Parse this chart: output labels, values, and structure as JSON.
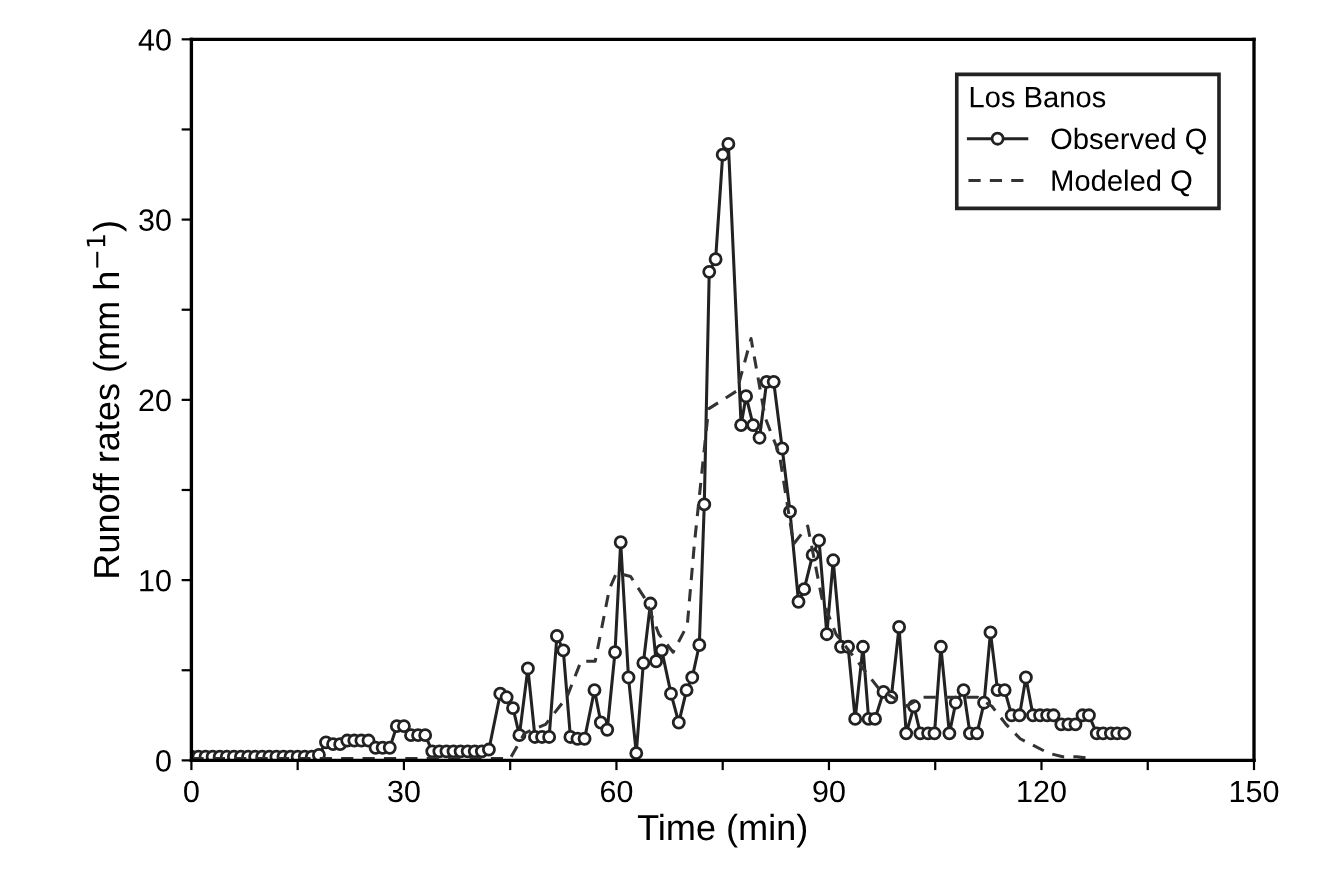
{
  "chart_data": {
    "type": "line",
    "xlabel": "Time (min)",
    "ylabel": "Runoff rates (mm h$^{−1}$)",
    "legend_title": "Los Banos",
    "legend": "top right",
    "grid": false,
    "xlim": [
      0,
      150
    ],
    "ylim": [
      0,
      40
    ],
    "xticks": [
      0,
      {
        "value": 15,
        "label": null
      },
      30,
      {
        "value": 45,
        "label": null
      },
      60,
      {
        "value": 75,
        "label": null
      },
      90,
      {
        "value": 105,
        "label": null
      },
      120,
      {
        "value": 135,
        "label": null
      },
      150
    ],
    "yticks": [
      0,
      {
        "value": 5,
        "label": null
      },
      10,
      {
        "value": 15,
        "label": null
      },
      20,
      {
        "value": 25,
        "label": null
      },
      30,
      {
        "value": 35,
        "label": null
      },
      40
    ],
    "series": [
      {
        "name": "Observed Q",
        "color": "#222222",
        "marker": "circle",
        "line_style": "solid",
        "x": [
          0,
          1,
          2,
          3,
          4,
          5,
          6,
          7,
          8,
          9,
          10,
          11,
          12,
          13,
          14,
          15,
          16,
          17,
          18,
          19,
          20,
          21,
          22,
          23,
          24,
          25,
          26,
          27,
          28,
          29,
          30,
          31,
          32,
          33,
          34,
          35,
          36,
          37,
          38,
          39,
          40,
          41,
          42,
          43.6,
          44.5,
          45.4,
          46.3,
          47.5,
          48.5,
          49.5,
          50.5,
          51.6,
          52.5,
          53.5,
          54.5,
          55.5,
          56.9,
          57.8,
          58.7,
          59.8,
          60.6,
          61.7,
          62.8,
          63.8,
          64.8,
          65.6,
          66.4,
          67.7,
          68.8,
          69.9,
          70.7,
          71.7,
          72.4,
          73.1,
          74,
          75,
          75.8,
          77.6,
          78.3,
          79.3,
          80.2,
          81.2,
          82.2,
          83.4,
          84.5,
          85.7,
          86.5,
          87.7,
          88.6,
          89.7,
          90.6,
          91.7,
          92.7,
          93.7,
          94.8,
          95.6,
          96.5,
          97.7,
          98.8,
          99.9,
          100.9,
          102,
          102.9,
          104,
          104.9,
          105.8,
          107,
          107.9,
          109,
          109.9,
          110.9,
          111.9,
          112.8,
          113.8,
          114.8,
          115.8,
          116.9,
          117.8,
          118.8,
          119.8,
          120.8,
          121.7,
          122.8,
          123.8,
          124.8,
          125.8,
          126.7,
          127.8,
          128.7,
          129.8,
          130.7,
          131.7
        ],
        "values": [
          0.2,
          0.2,
          0.2,
          0.2,
          0.2,
          0.2,
          0.2,
          0.2,
          0.2,
          0.2,
          0.2,
          0.2,
          0.2,
          0.2,
          0.2,
          0.2,
          0.2,
          0.2,
          0.3,
          1.0,
          0.9,
          0.9,
          1.1,
          1.1,
          1.1,
          1.1,
          0.7,
          0.7,
          0.7,
          1.9,
          1.9,
          1.4,
          1.4,
          1.4,
          0.5,
          0.5,
          0.5,
          0.5,
          0.5,
          0.5,
          0.5,
          0.5,
          0.6,
          3.7,
          3.5,
          2.9,
          1.4,
          5.1,
          1.3,
          1.3,
          1.3,
          6.9,
          6.1,
          1.3,
          1.2,
          1.2,
          3.9,
          2.1,
          1.7,
          6.0,
          12.1,
          4.6,
          0.4,
          5.4,
          8.7,
          5.5,
          6.1,
          3.7,
          2.1,
          3.9,
          4.6,
          6.4,
          14.2,
          27.1,
          27.8,
          33.6,
          34.2,
          18.6,
          20.2,
          18.6,
          17.9,
          21.0,
          21.0,
          17.3,
          13.8,
          8.8,
          9.5,
          11.4,
          12.2,
          7.0,
          11.1,
          6.3,
          6.3,
          2.3,
          6.3,
          2.3,
          2.3,
          3.8,
          3.5,
          7.4,
          1.5,
          3.0,
          1.5,
          1.5,
          1.5,
          6.3,
          1.5,
          3.2,
          3.9,
          1.5,
          1.5,
          3.2,
          7.1,
          3.9,
          3.9,
          2.5,
          2.5,
          4.6,
          2.5,
          2.5,
          2.5,
          2.5,
          2.0,
          2.0,
          2.0,
          2.5,
          2.5,
          1.5,
          1.5,
          1.5,
          1.5,
          1.5
        ]
      },
      {
        "name": "Modeled Q",
        "color": "#333333",
        "marker": "none",
        "line_style": "dashed",
        "x": [
          0,
          45,
          47,
          50,
          53,
          55,
          57,
          59,
          60,
          62,
          64,
          66,
          68,
          70,
          71,
          73,
          75,
          77,
          79,
          81,
          83,
          85,
          87,
          89,
          91,
          93,
          95,
          97,
          99,
          101,
          103,
          105,
          107,
          109,
          111,
          113,
          115,
          117,
          119,
          121,
          123,
          125,
          127
        ],
        "values": [
          0.1,
          0.1,
          1.5,
          2.0,
          3.5,
          5.5,
          5.5,
          9.5,
          10.4,
          10.2,
          9.0,
          7.0,
          6.0,
          7.5,
          12.0,
          19.5,
          20.0,
          20.5,
          23.4,
          19.0,
          17.0,
          12.0,
          13.0,
          9.0,
          7.0,
          6.0,
          5.0,
          4.0,
          3.5,
          3.0,
          3.5,
          3.5,
          3.5,
          3.5,
          3.5,
          3.0,
          2.0,
          1.2,
          0.8,
          0.4,
          0.2,
          0.2,
          0.1
        ]
      }
    ]
  }
}
